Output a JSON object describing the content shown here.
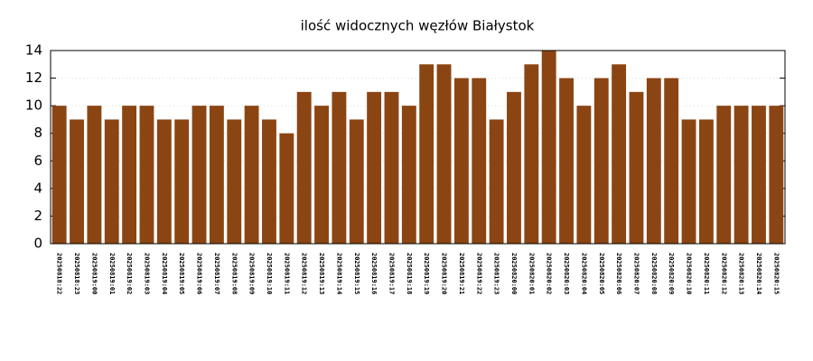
{
  "chart_data": {
    "type": "bar",
    "title": "ilość widocznych węzłów Białystok",
    "categories": [
      "20250818:22",
      "20250818:23",
      "20250819:00",
      "20250819:01",
      "20250819:02",
      "20250819:03",
      "20250819:04",
      "20250819:05",
      "20250819:06",
      "20250819:07",
      "20250819:08",
      "20250819:09",
      "20250819:10",
      "20250819:11",
      "20250819:12",
      "20250819:13",
      "20250819:14",
      "20250819:15",
      "20250819:16",
      "20250819:17",
      "20250819:18",
      "20250819:19",
      "20250819:20",
      "20250819:21",
      "20250819:22",
      "20250819:23",
      "20250820:00",
      "20250820:01",
      "20250820:02",
      "20250820:03",
      "20250820:04",
      "20250820:05",
      "20250820:06",
      "20250820:07",
      "20250820:08",
      "20250820:09",
      "20250820:10",
      "20250820:11",
      "20250820:12",
      "20250820:13",
      "20250820:14",
      "20250820:15"
    ],
    "values": [
      10,
      9,
      10,
      9,
      10,
      10,
      9,
      9,
      10,
      10,
      9,
      10,
      9,
      8,
      11,
      10,
      11,
      9,
      11,
      11,
      10,
      13,
      13,
      12,
      12,
      9,
      11,
      13,
      14,
      12,
      10,
      12,
      13,
      11,
      12,
      12,
      9,
      9,
      10,
      10,
      10,
      10
    ],
    "color": "#8b4513",
    "ylim": [
      0,
      14
    ],
    "yticks": [
      0,
      2,
      4,
      6,
      8,
      10,
      12,
      14
    ],
    "grid": true
  }
}
